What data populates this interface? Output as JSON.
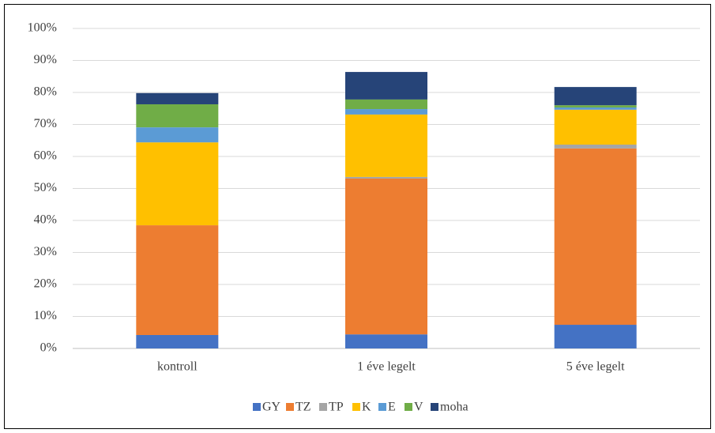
{
  "chart_data": {
    "type": "stacked_bar",
    "categories": [
      "kontroll",
      "1 éve legelt",
      "5 éve legelt"
    ],
    "series": [
      {
        "name": "GY",
        "color": "#4472c4",
        "values": [
          4.2,
          4.4,
          7.4
        ]
      },
      {
        "name": "TZ",
        "color": "#ed7d31",
        "values": [
          34.3,
          48.7,
          55.1
        ]
      },
      {
        "name": "TP",
        "color": "#a5a5a5",
        "values": [
          0,
          0.5,
          1.2
        ]
      },
      {
        "name": "K",
        "color": "#ffc000",
        "values": [
          25.9,
          19.5,
          10.9
        ]
      },
      {
        "name": "E",
        "color": "#5b9bd5",
        "values": [
          4.7,
          1.7,
          0.7
        ]
      },
      {
        "name": "V",
        "color": "#70ad47",
        "values": [
          7.2,
          3.0,
          0.7
        ]
      },
      {
        "name": "moha",
        "color": "#264478",
        "values": [
          3.5,
          8.6,
          5.7
        ]
      }
    ],
    "ylim": [
      0,
      100
    ],
    "yticks": [
      {
        "value": 0,
        "label": "0%"
      },
      {
        "value": 10,
        "label": "10%"
      },
      {
        "value": 20,
        "label": "20%"
      },
      {
        "value": 30,
        "label": "30%"
      },
      {
        "value": 40,
        "label": "40%"
      },
      {
        "value": 50,
        "label": "50%"
      },
      {
        "value": 60,
        "label": "60%"
      },
      {
        "value": 70,
        "label": "70%"
      },
      {
        "value": 80,
        "label": "80%"
      },
      {
        "value": 90,
        "label": "90%"
      },
      {
        "value": 100,
        "label": "100%"
      }
    ],
    "grid": true,
    "legend": "bottom"
  }
}
